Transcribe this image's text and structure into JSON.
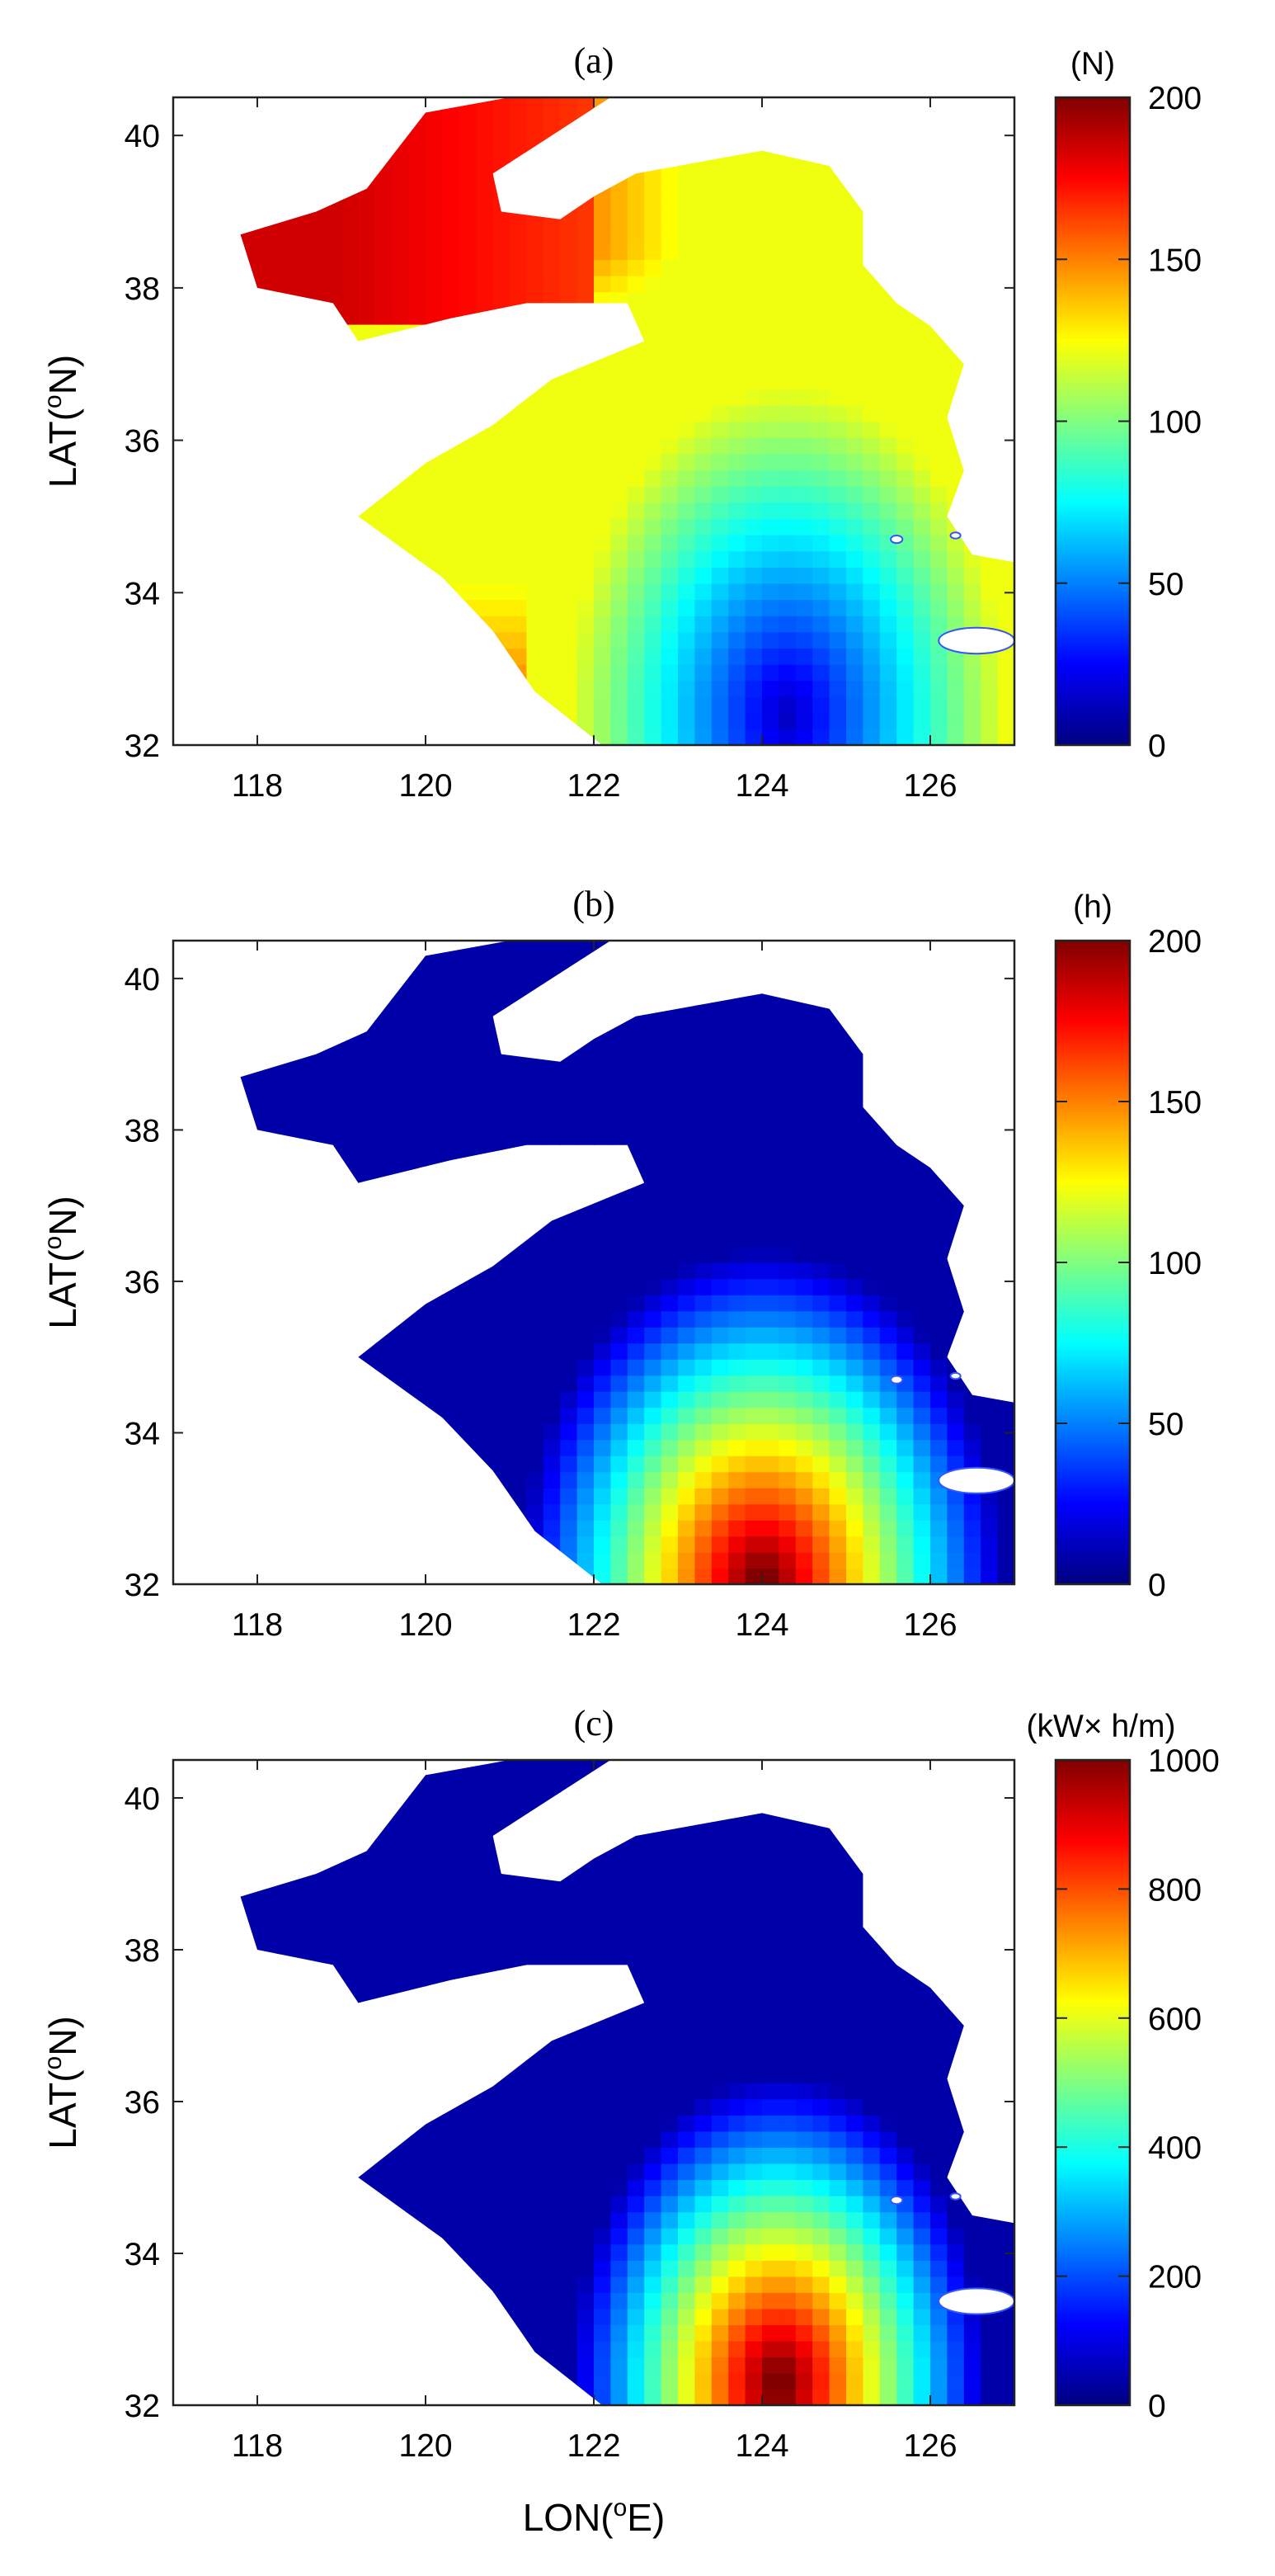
{
  "chart_data": [
    {
      "type": "heatmap",
      "title": "(a)",
      "xlabel": "",
      "ylabel": "LAT(ºN)",
      "ylabel_parts": {
        "pre": "LAT(",
        "sup": "o",
        "post": "N)"
      },
      "xlim": [
        117,
        127
      ],
      "ylim": [
        32,
        40.5
      ],
      "x_ticks": [
        118,
        120,
        122,
        124,
        126
      ],
      "y_ticks": [
        32,
        34,
        36,
        38,
        40
      ],
      "colorbar": {
        "label": "(N)",
        "min": 0,
        "max": 200,
        "ticks": [
          0,
          50,
          100,
          150,
          200
        ],
        "colormap": "jet"
      },
      "field": {
        "kind": "count",
        "north_bohai": 175,
        "south_deep": 10
      }
    },
    {
      "type": "heatmap",
      "title": "(b)",
      "xlabel": "",
      "ylabel": "LAT(ºN)",
      "ylabel_parts": {
        "pre": "LAT(",
        "sup": "o",
        "post": "N)"
      },
      "xlim": [
        117,
        127
      ],
      "ylim": [
        32,
        40.5
      ],
      "x_ticks": [
        118,
        120,
        122,
        124,
        126
      ],
      "y_ticks": [
        32,
        34,
        36,
        38,
        40
      ],
      "colorbar": {
        "label": "(h)",
        "min": 0,
        "max": 200,
        "ticks": [
          0,
          50,
          100,
          150,
          200
        ],
        "colormap": "jet"
      },
      "field": {
        "kind": "hours",
        "coast": 10,
        "south_deep": 200
      }
    },
    {
      "type": "heatmap",
      "title": "(c)",
      "xlabel": "LON(ºE)",
      "xlabel_parts": {
        "pre": "LON(",
        "sup": "o",
        "post": "E)"
      },
      "ylabel": "LAT(ºN)",
      "ylabel_parts": {
        "pre": "LAT(",
        "sup": "o",
        "post": "N)"
      },
      "xlim": [
        117,
        127
      ],
      "ylim": [
        32,
        40.5
      ],
      "x_ticks": [
        118,
        120,
        122,
        124,
        126
      ],
      "y_ticks": [
        32,
        34,
        36,
        38,
        40
      ],
      "colorbar": {
        "label": "(kW× h/m)",
        "min": 0,
        "max": 1000,
        "ticks": [
          0,
          200,
          400,
          600,
          800,
          1000
        ],
        "colormap": "jet"
      },
      "field": {
        "kind": "energy",
        "coast": 40,
        "south_deep": 1000
      }
    }
  ],
  "sea_outline": [
    [
      120.0,
      40.3
    ],
    [
      121.0,
      40.5
    ],
    [
      122.2,
      40.5
    ],
    [
      121.5,
      40.0
    ],
    [
      120.8,
      39.5
    ],
    [
      120.9,
      39.0
    ],
    [
      121.6,
      38.9
    ],
    [
      122.0,
      39.2
    ],
    [
      122.5,
      39.5
    ],
    [
      123.0,
      39.6
    ],
    [
      124.0,
      39.8
    ],
    [
      124.8,
      39.6
    ],
    [
      125.2,
      39.0
    ],
    [
      125.2,
      38.3
    ],
    [
      125.6,
      37.8
    ],
    [
      126.0,
      37.5
    ],
    [
      126.4,
      37.0
    ],
    [
      126.2,
      36.3
    ],
    [
      126.4,
      35.6
    ],
    [
      126.2,
      35.0
    ],
    [
      126.5,
      34.5
    ],
    [
      127.0,
      34.4
    ],
    [
      127.0,
      32.0
    ],
    [
      122.1,
      32.0
    ],
    [
      121.3,
      32.7
    ],
    [
      120.8,
      33.5
    ],
    [
      120.2,
      34.2
    ],
    [
      119.2,
      35.0
    ],
    [
      120.0,
      35.7
    ],
    [
      120.8,
      36.2
    ],
    [
      121.5,
      36.8
    ],
    [
      122.6,
      37.3
    ],
    [
      122.4,
      37.8
    ],
    [
      121.2,
      37.8
    ],
    [
      120.3,
      37.6
    ],
    [
      119.2,
      37.3
    ],
    [
      118.9,
      37.8
    ],
    [
      118.0,
      38.0
    ],
    [
      117.8,
      38.7
    ],
    [
      118.7,
      39.0
    ],
    [
      119.3,
      39.3
    ]
  ],
  "islands": [
    {
      "cx": 126.55,
      "cy": 33.37,
      "rx": 0.45,
      "ry": 0.17
    },
    {
      "cx": 125.6,
      "cy": 34.7,
      "rx": 0.07,
      "ry": 0.05
    },
    {
      "cx": 126.3,
      "cy": 34.75,
      "rx": 0.06,
      "ry": 0.04
    }
  ]
}
